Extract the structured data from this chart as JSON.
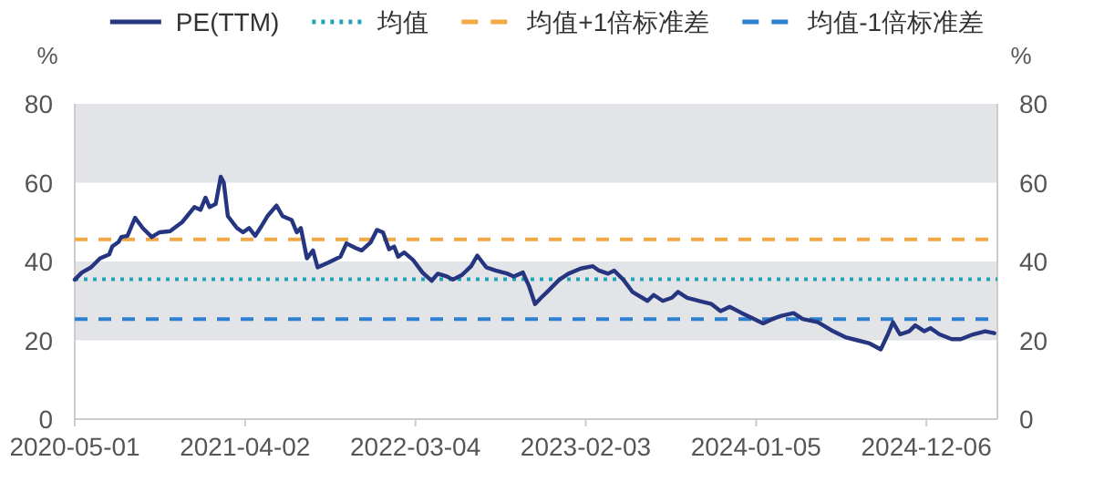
{
  "chart_data": {
    "type": "line",
    "annotations": [
      "%",
      "%"
    ],
    "x": [
      "2020-05-01",
      "2020-05-15",
      "2020-06-02",
      "2020-06-20",
      "2020-07-08",
      "2020-07-14",
      "2020-07-26",
      "2020-08-01",
      "2020-08-13",
      "2020-08-28",
      "2020-09-12",
      "2020-09-30",
      "2020-10-15",
      "2020-11-05",
      "2020-11-29",
      "2020-12-23",
      "2021-01-04",
      "2021-01-14",
      "2021-01-22",
      "2021-02-03",
      "2021-02-13",
      "2021-02-19",
      "2021-02-27",
      "2021-03-17",
      "2021-03-29",
      "2021-04-10",
      "2021-04-22",
      "2021-05-04",
      "2021-05-16",
      "2021-06-03",
      "2021-06-15",
      "2021-07-03",
      "2021-07-13",
      "2021-07-21",
      "2021-08-02",
      "2021-08-14",
      "2021-08-23",
      "2021-09-13",
      "2021-10-07",
      "2021-10-19",
      "2021-11-06",
      "2021-11-18",
      "2021-12-06",
      "2021-12-18",
      "2021-12-30",
      "2022-01-11",
      "2022-01-21",
      "2022-01-29",
      "2022-02-10",
      "2022-02-28",
      "2022-03-18",
      "2022-04-05",
      "2022-04-17",
      "2022-05-05",
      "2022-05-17",
      "2022-06-04",
      "2022-06-22",
      "2022-07-04",
      "2022-07-22",
      "2022-08-09",
      "2022-09-02",
      "2022-09-14",
      "2022-10-02",
      "2022-10-14",
      "2022-10-26",
      "2022-11-07",
      "2022-11-19",
      "2022-12-13",
      "2022-12-31",
      "2023-01-24",
      "2023-02-17",
      "2023-03-01",
      "2023-03-19",
      "2023-03-31",
      "2023-04-18",
      "2023-05-06",
      "2023-06-05",
      "2023-06-17",
      "2023-07-05",
      "2023-07-23",
      "2023-08-04",
      "2023-08-22",
      "2023-09-15",
      "2023-10-09",
      "2023-10-27",
      "2023-11-14",
      "2023-12-08",
      "2023-12-26",
      "2024-01-19",
      "2024-02-06",
      "2024-02-24",
      "2024-03-19",
      "2024-04-06",
      "2024-05-06",
      "2024-06-05",
      "2024-06-29",
      "2024-07-23",
      "2024-08-16",
      "2024-09-07",
      "2024-09-21",
      "2024-10-01",
      "2024-10-15",
      "2024-11-02",
      "2024-11-14",
      "2024-12-02",
      "2024-12-14",
      "2025-01-01",
      "2025-01-25",
      "2025-02-12",
      "2025-03-08",
      "2025-04-01",
      "2025-04-19"
    ],
    "series": [
      {
        "name": "PE(TTM)",
        "color": "#25357f",
        "values": [
          35.4,
          37.2,
          38.5,
          40.8,
          41.8,
          43.8,
          44.9,
          46.2,
          46.5,
          51.1,
          48.5,
          46.2,
          47.4,
          47.7,
          50.0,
          53.8,
          53.1,
          56.2,
          53.8,
          54.6,
          61.5,
          60.0,
          51.5,
          48.5,
          47.4,
          48.5,
          46.5,
          48.9,
          51.5,
          54.2,
          51.5,
          50.5,
          47.4,
          48.5,
          40.8,
          42.8,
          38.5,
          39.7,
          41.2,
          44.6,
          43.4,
          42.8,
          44.9,
          48.0,
          47.4,
          43.1,
          43.8,
          41.2,
          42.3,
          40.3,
          37.2,
          35.1,
          36.9,
          36.2,
          35.4,
          36.6,
          38.8,
          41.5,
          38.5,
          37.7,
          36.9,
          36.2,
          37.2,
          33.8,
          29.2,
          30.8,
          32.3,
          35.4,
          36.9,
          38.2,
          38.8,
          37.7,
          36.9,
          37.7,
          35.4,
          32.3,
          30.0,
          31.5,
          30.0,
          30.8,
          32.3,
          30.8,
          30.0,
          29.2,
          27.4,
          28.5,
          26.9,
          25.8,
          24.3,
          25.4,
          26.2,
          26.9,
          25.4,
          24.6,
          22.3,
          20.8,
          20.0,
          19.2,
          17.7,
          21.5,
          24.6,
          21.5,
          22.3,
          23.8,
          22.3,
          23.1,
          21.5,
          20.3,
          20.3,
          21.5,
          22.3,
          21.8
        ]
      }
    ],
    "ref_lines": [
      {
        "axis": "y",
        "value": 35.5,
        "label": "均值",
        "color": "#1fa3b5",
        "line_style": "dotted"
      },
      {
        "axis": "y",
        "value": 45.6,
        "label": "均值+1倍标准差",
        "color": "#f0a945",
        "line_style": "dashed"
      },
      {
        "axis": "y",
        "value": 25.4,
        "label": "均值-1倍标准差",
        "color": "#2f7fd0",
        "line_style": "dashed"
      }
    ],
    "bands": [
      {
        "axis": "y",
        "from": 20,
        "to": 40,
        "color": "#e3e4e8"
      },
      {
        "axis": "y",
        "from": 60,
        "to": 80,
        "color": "#e3e4e8"
      }
    ],
    "xlim": [
      "2020-05-01",
      "2025-04-25"
    ],
    "xticks": [
      "2020-05-01",
      "2021-04-02",
      "2022-03-04",
      "2023-02-03",
      "2024-01-05",
      "2024-12-06"
    ],
    "ylim": [
      0,
      80
    ],
    "yticks": [
      0,
      20,
      40,
      60,
      80
    ],
    "y2lim": [
      0,
      80
    ],
    "y2ticks": [
      0,
      20,
      40,
      60,
      80
    ],
    "legend": "top",
    "grid": false,
    "marker": "none",
    "line_style": "solid"
  }
}
